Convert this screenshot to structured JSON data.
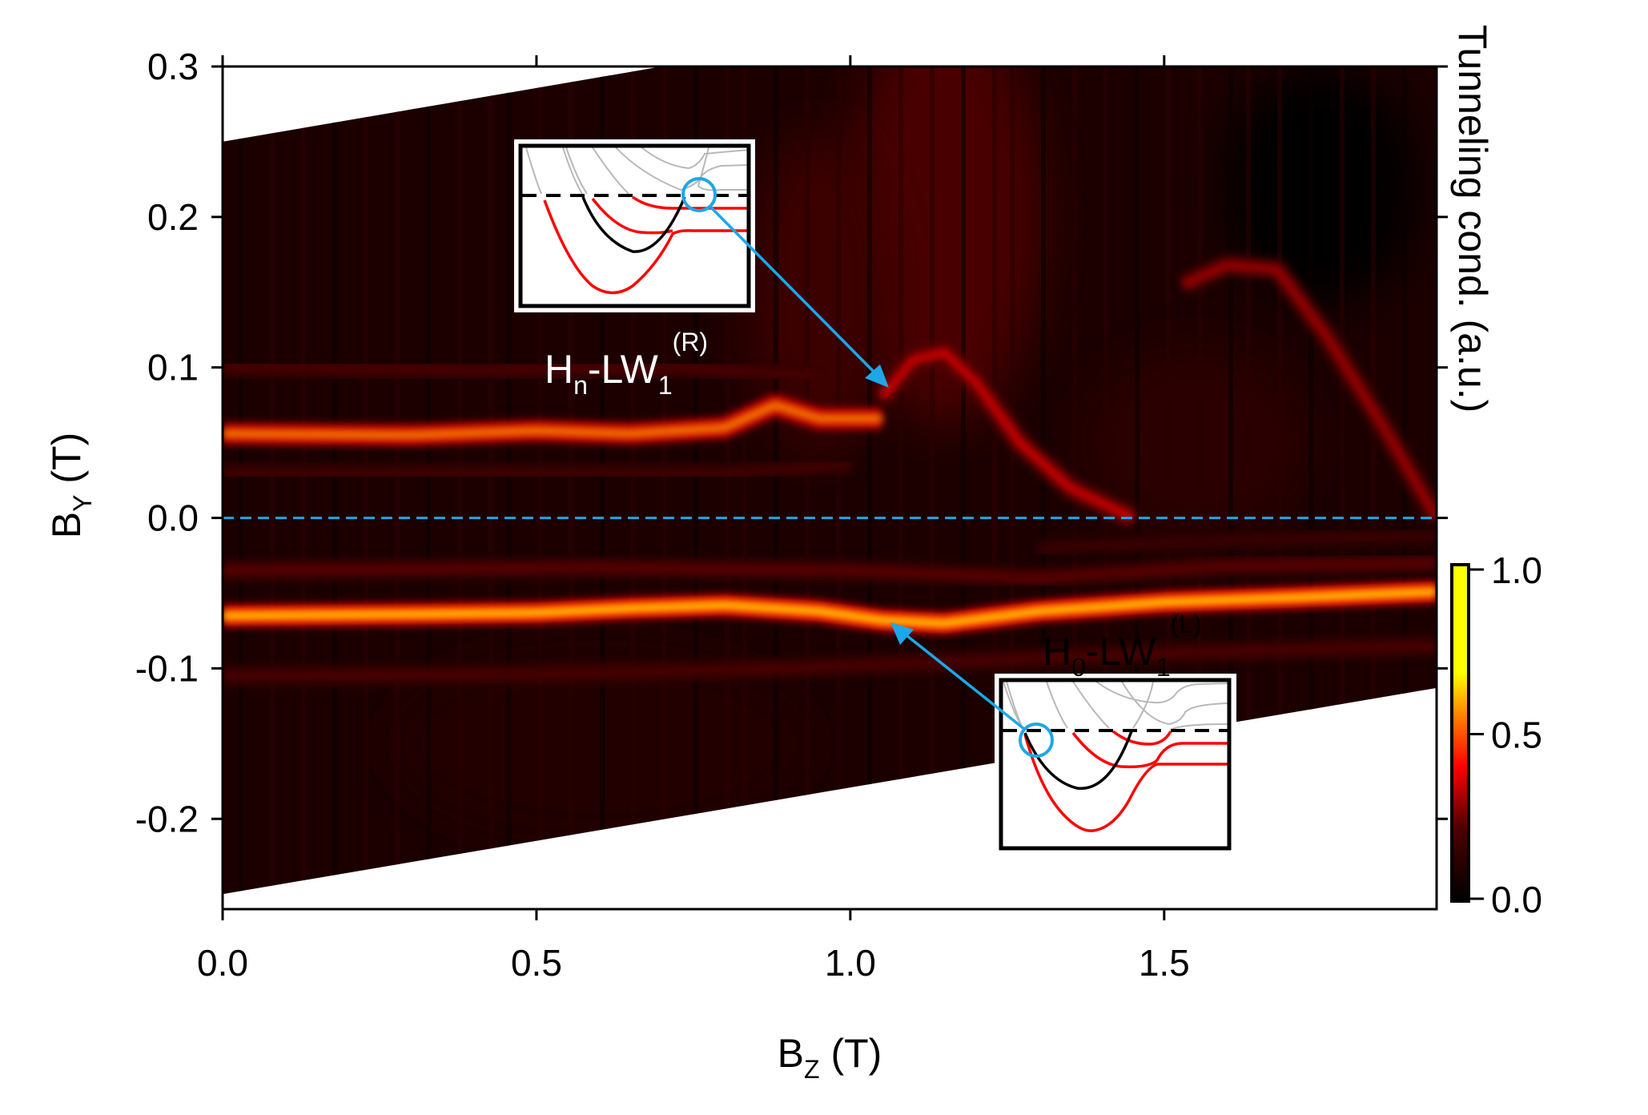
{
  "chart_data": {
    "type": "heatmap",
    "xlabel": {
      "main": "B",
      "sub": "Z",
      "rest": " (T)"
    },
    "ylabel": {
      "main": "B",
      "sub": "Y",
      "rest": " (T)"
    },
    "xlim": [
      0.0,
      1.934
    ],
    "ylim": [
      -0.26,
      0.3
    ],
    "xticks": [
      "0.0",
      "0.5",
      "1.0",
      "1.5"
    ],
    "xtick_values": [
      0.0,
      0.5,
      1.0,
      1.5
    ],
    "yticks": [
      "0.3",
      "0.2",
      "0.1",
      "0.0",
      "-0.1",
      "-0.2"
    ],
    "ytick_values": [
      0.3,
      0.2,
      0.1,
      0.0,
      -0.1,
      -0.2
    ],
    "colorbar": {
      "label": "Tunneling cond. (a.u.)",
      "ticks": [
        "1.0",
        "0.5",
        "0.0"
      ],
      "tick_values": [
        1.0,
        0.5,
        0.0
      ],
      "range": [
        0.0,
        1.0
      ],
      "colormap": [
        "#000000",
        "#7a0000",
        "#ff0000",
        "#ff8000",
        "#ffff00"
      ]
    },
    "data_region": {
      "top_edge": [
        [
          0.0,
          0.25
        ],
        [
          0.7,
          0.3
        ],
        [
          1.934,
          0.3
        ]
      ],
      "bottom_edge": [
        [
          0.0,
          -0.25
        ],
        [
          1.934,
          -0.113
        ]
      ]
    },
    "features": [
      {
        "id": "H0-LW1-L-main",
        "intensity": 0.68,
        "points": [
          [
            0,
            -0.065
          ],
          [
            0.3,
            -0.064
          ],
          [
            0.5,
            -0.063
          ],
          [
            0.65,
            -0.06
          ],
          [
            0.8,
            -0.058
          ],
          [
            0.95,
            -0.062
          ],
          [
            1.05,
            -0.068
          ],
          [
            1.15,
            -0.07
          ],
          [
            1.3,
            -0.062
          ],
          [
            1.5,
            -0.056
          ],
          [
            1.7,
            -0.053
          ],
          [
            1.934,
            -0.049
          ]
        ]
      },
      {
        "id": "Hn-LW1-R-main",
        "intensity": 0.58,
        "points": [
          [
            0,
            0.056
          ],
          [
            0.3,
            0.055
          ],
          [
            0.5,
            0.058
          ],
          [
            0.65,
            0.056
          ],
          [
            0.8,
            0.06
          ],
          [
            0.88,
            0.075
          ],
          [
            0.95,
            0.066
          ],
          [
            1.05,
            0.066
          ]
        ]
      },
      {
        "id": "Hn-branch",
        "intensity": 0.38,
        "points": [
          [
            1.05,
            0.08
          ],
          [
            1.1,
            0.105
          ],
          [
            1.15,
            0.11
          ],
          [
            1.2,
            0.09
          ],
          [
            1.27,
            0.05
          ],
          [
            1.35,
            0.02
          ],
          [
            1.45,
            0.0
          ]
        ]
      },
      {
        "id": "upper-right-branch",
        "intensity": 0.32,
        "points": [
          [
            1.53,
            0.155
          ],
          [
            1.6,
            0.168
          ],
          [
            1.68,
            0.165
          ],
          [
            1.76,
            0.12
          ],
          [
            1.85,
            0.06
          ],
          [
            1.934,
            0.0
          ]
        ]
      },
      {
        "id": "faint-1",
        "intensity": 0.22,
        "points": [
          [
            0,
            0.1
          ],
          [
            0.4,
            0.098
          ],
          [
            0.7,
            0.1
          ],
          [
            0.95,
            0.095
          ]
        ]
      },
      {
        "id": "faint-2",
        "intensity": 0.2,
        "points": [
          [
            0,
            0.03
          ],
          [
            0.5,
            0.03
          ],
          [
            0.8,
            0.03
          ],
          [
            1.0,
            0.035
          ]
        ]
      },
      {
        "id": "faint-3",
        "intensity": 0.24,
        "points": [
          [
            0,
            -0.035
          ],
          [
            0.6,
            -0.033
          ],
          [
            1.0,
            -0.035
          ],
          [
            1.3,
            -0.04
          ],
          [
            1.6,
            -0.032
          ],
          [
            1.934,
            -0.03
          ]
        ]
      },
      {
        "id": "faint-4",
        "intensity": 0.22,
        "points": [
          [
            0,
            -0.105
          ],
          [
            0.5,
            -0.104
          ],
          [
            0.9,
            -0.1
          ],
          [
            1.2,
            -0.095
          ],
          [
            1.5,
            -0.09
          ],
          [
            1.934,
            -0.085
          ]
        ]
      },
      {
        "id": "faint-5",
        "intensity": 0.18,
        "points": [
          [
            1.3,
            -0.02
          ],
          [
            1.6,
            -0.015
          ],
          [
            1.934,
            -0.012
          ]
        ]
      }
    ]
  },
  "annotations": {
    "upper": {
      "main": "H",
      "sub": "n",
      "mid": "-LW",
      "sub2": "1",
      "sup": "(R)"
    },
    "lower": {
      "main": "H",
      "sub": "0",
      "mid": "-LW",
      "sub2": "1",
      "sup": "(L)"
    },
    "zero_line_color": "#1ea7e8",
    "arrow_color": "#1ea7e8"
  }
}
